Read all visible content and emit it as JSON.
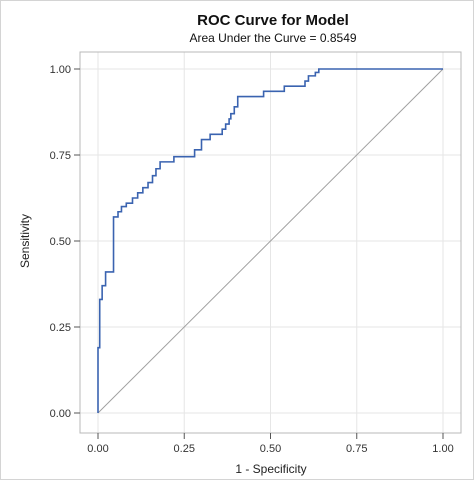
{
  "chart_data": {
    "type": "line",
    "title": "ROC Curve for Model",
    "subtitle": "Area Under the Curve = 0.8549",
    "xlabel": "1 - Specificity",
    "ylabel": "Sensitivity",
    "xlim": [
      0,
      1
    ],
    "ylim": [
      0,
      1
    ],
    "xticks": [
      0,
      0.25,
      0.5,
      0.75,
      1
    ],
    "yticks": [
      0,
      0.25,
      0.5,
      0.75,
      1
    ],
    "x_tick_labels": [
      "0.00",
      "0.25",
      "0.50",
      "0.75",
      "1.00"
    ],
    "y_tick_labels": [
      "0.00",
      "0.25",
      "0.50",
      "0.75",
      "1.00"
    ],
    "grid": true,
    "legend": "none",
    "colors": {
      "roc_line": "#3a63b0",
      "reference_line": "#a0a0a0",
      "grid": "#e6e6e6",
      "axes": "#b8b8b8"
    },
    "series": [
      {
        "style": "step",
        "x": [
          0,
          0,
          0.005,
          0.005,
          0.012,
          0.012,
          0.022,
          0.022,
          0.045,
          0.045,
          0.058,
          0.058,
          0.068,
          0.068,
          0.082,
          0.082,
          0.1,
          0.1,
          0.115,
          0.115,
          0.13,
          0.13,
          0.145,
          0.145,
          0.158,
          0.158,
          0.168,
          0.168,
          0.18,
          0.18,
          0.22,
          0.22,
          0.28,
          0.28,
          0.3,
          0.3,
          0.325,
          0.325,
          0.36,
          0.36,
          0.37,
          0.37,
          0.38,
          0.38,
          0.385,
          0.385,
          0.395,
          0.395,
          0.405,
          0.405,
          0.48,
          0.48,
          0.54,
          0.54,
          0.6,
          0.6,
          0.61,
          0.61,
          0.63,
          0.63,
          0.64,
          0.64,
          1.0
        ],
        "y": [
          0,
          0.19,
          0.19,
          0.33,
          0.33,
          0.37,
          0.37,
          0.41,
          0.41,
          0.57,
          0.57,
          0.585,
          0.585,
          0.6,
          0.6,
          0.61,
          0.61,
          0.625,
          0.625,
          0.64,
          0.64,
          0.655,
          0.655,
          0.67,
          0.67,
          0.69,
          0.69,
          0.71,
          0.71,
          0.73,
          0.73,
          0.745,
          0.745,
          0.765,
          0.765,
          0.795,
          0.795,
          0.81,
          0.81,
          0.825,
          0.825,
          0.84,
          0.84,
          0.855,
          0.855,
          0.87,
          0.87,
          0.89,
          0.89,
          0.92,
          0.92,
          0.935,
          0.935,
          0.95,
          0.95,
          0.965,
          0.965,
          0.98,
          0.98,
          0.99,
          0.99,
          1.0,
          1.0
        ]
      },
      {
        "style": "reference",
        "x": [
          0,
          1
        ],
        "y": [
          0,
          1
        ]
      }
    ]
  }
}
